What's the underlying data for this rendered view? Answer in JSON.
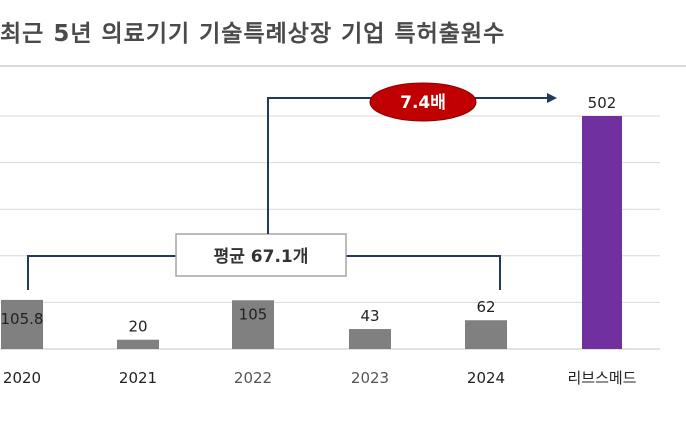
{
  "title": "최근 5년 의료기기 기술특례상장 기업 특허출원수",
  "annotations": {
    "average_label": "평균 67.1개",
    "ratio_label": "7.4배"
  },
  "colors": {
    "bar_default": "#808080",
    "bar_highlight": "#7030a0",
    "bracket": "#1f3a5f",
    "ratio_badge": "#c00000",
    "gridline": "#d9d9d9"
  },
  "chart_data": {
    "type": "bar",
    "categories": [
      "2020",
      "2021",
      "2022",
      "2023",
      "2024",
      "리브스메드"
    ],
    "values": [
      105.8,
      20,
      105,
      43,
      62,
      502
    ],
    "data_labels": [
      "105.8",
      "20",
      "105",
      "43",
      "62",
      "502"
    ],
    "highlight_index": 5,
    "ylim": [
      0,
      502
    ],
    "grid": true,
    "legend": "none",
    "xlabel": "",
    "ylabel": ""
  }
}
